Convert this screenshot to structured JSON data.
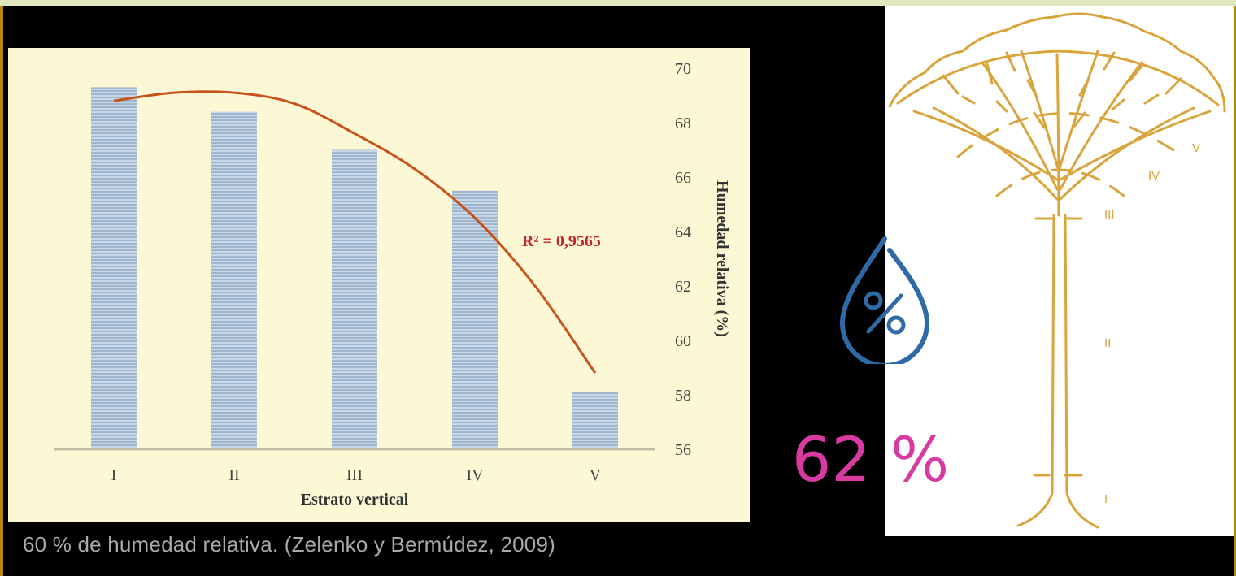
{
  "chart_data": {
    "type": "bar",
    "categories": [
      "I",
      "II",
      "III",
      "IV",
      "V"
    ],
    "values": [
      69.3,
      68.4,
      67.0,
      65.5,
      58.1
    ],
    "xlabel": "Estrato vertical",
    "ylabel": "Humedad relativa (%)",
    "ylim": [
      56,
      70
    ],
    "yticks": [
      56,
      58,
      60,
      62,
      64,
      66,
      68,
      70
    ],
    "y_axis_side": "right",
    "trendline": {
      "type": "polynomial",
      "annotation": "R² = 0,9565",
      "points": [
        [
          1,
          68.8
        ],
        [
          1.5,
          69.1
        ],
        [
          2,
          69.1
        ],
        [
          2.5,
          68.7
        ],
        [
          3,
          67.6
        ],
        [
          3.5,
          66.3
        ],
        [
          4,
          64.5
        ],
        [
          4.5,
          62.0
        ],
        [
          5,
          58.8
        ]
      ],
      "color": "#c8531a"
    },
    "bar_color": "#a9bed5",
    "grid": false
  },
  "caption": "60 % de humedad relativa. (Zelenko y Bermúdez, 2009)",
  "humidity": {
    "value": "62",
    "unit": "%"
  },
  "tree": {
    "strata_labels": [
      "I",
      "II",
      "III",
      "IV",
      "V"
    ],
    "color": "#d9a43c"
  },
  "icon_names": [
    "humidity-drop-icon",
    "tree-strata-diagram"
  ]
}
